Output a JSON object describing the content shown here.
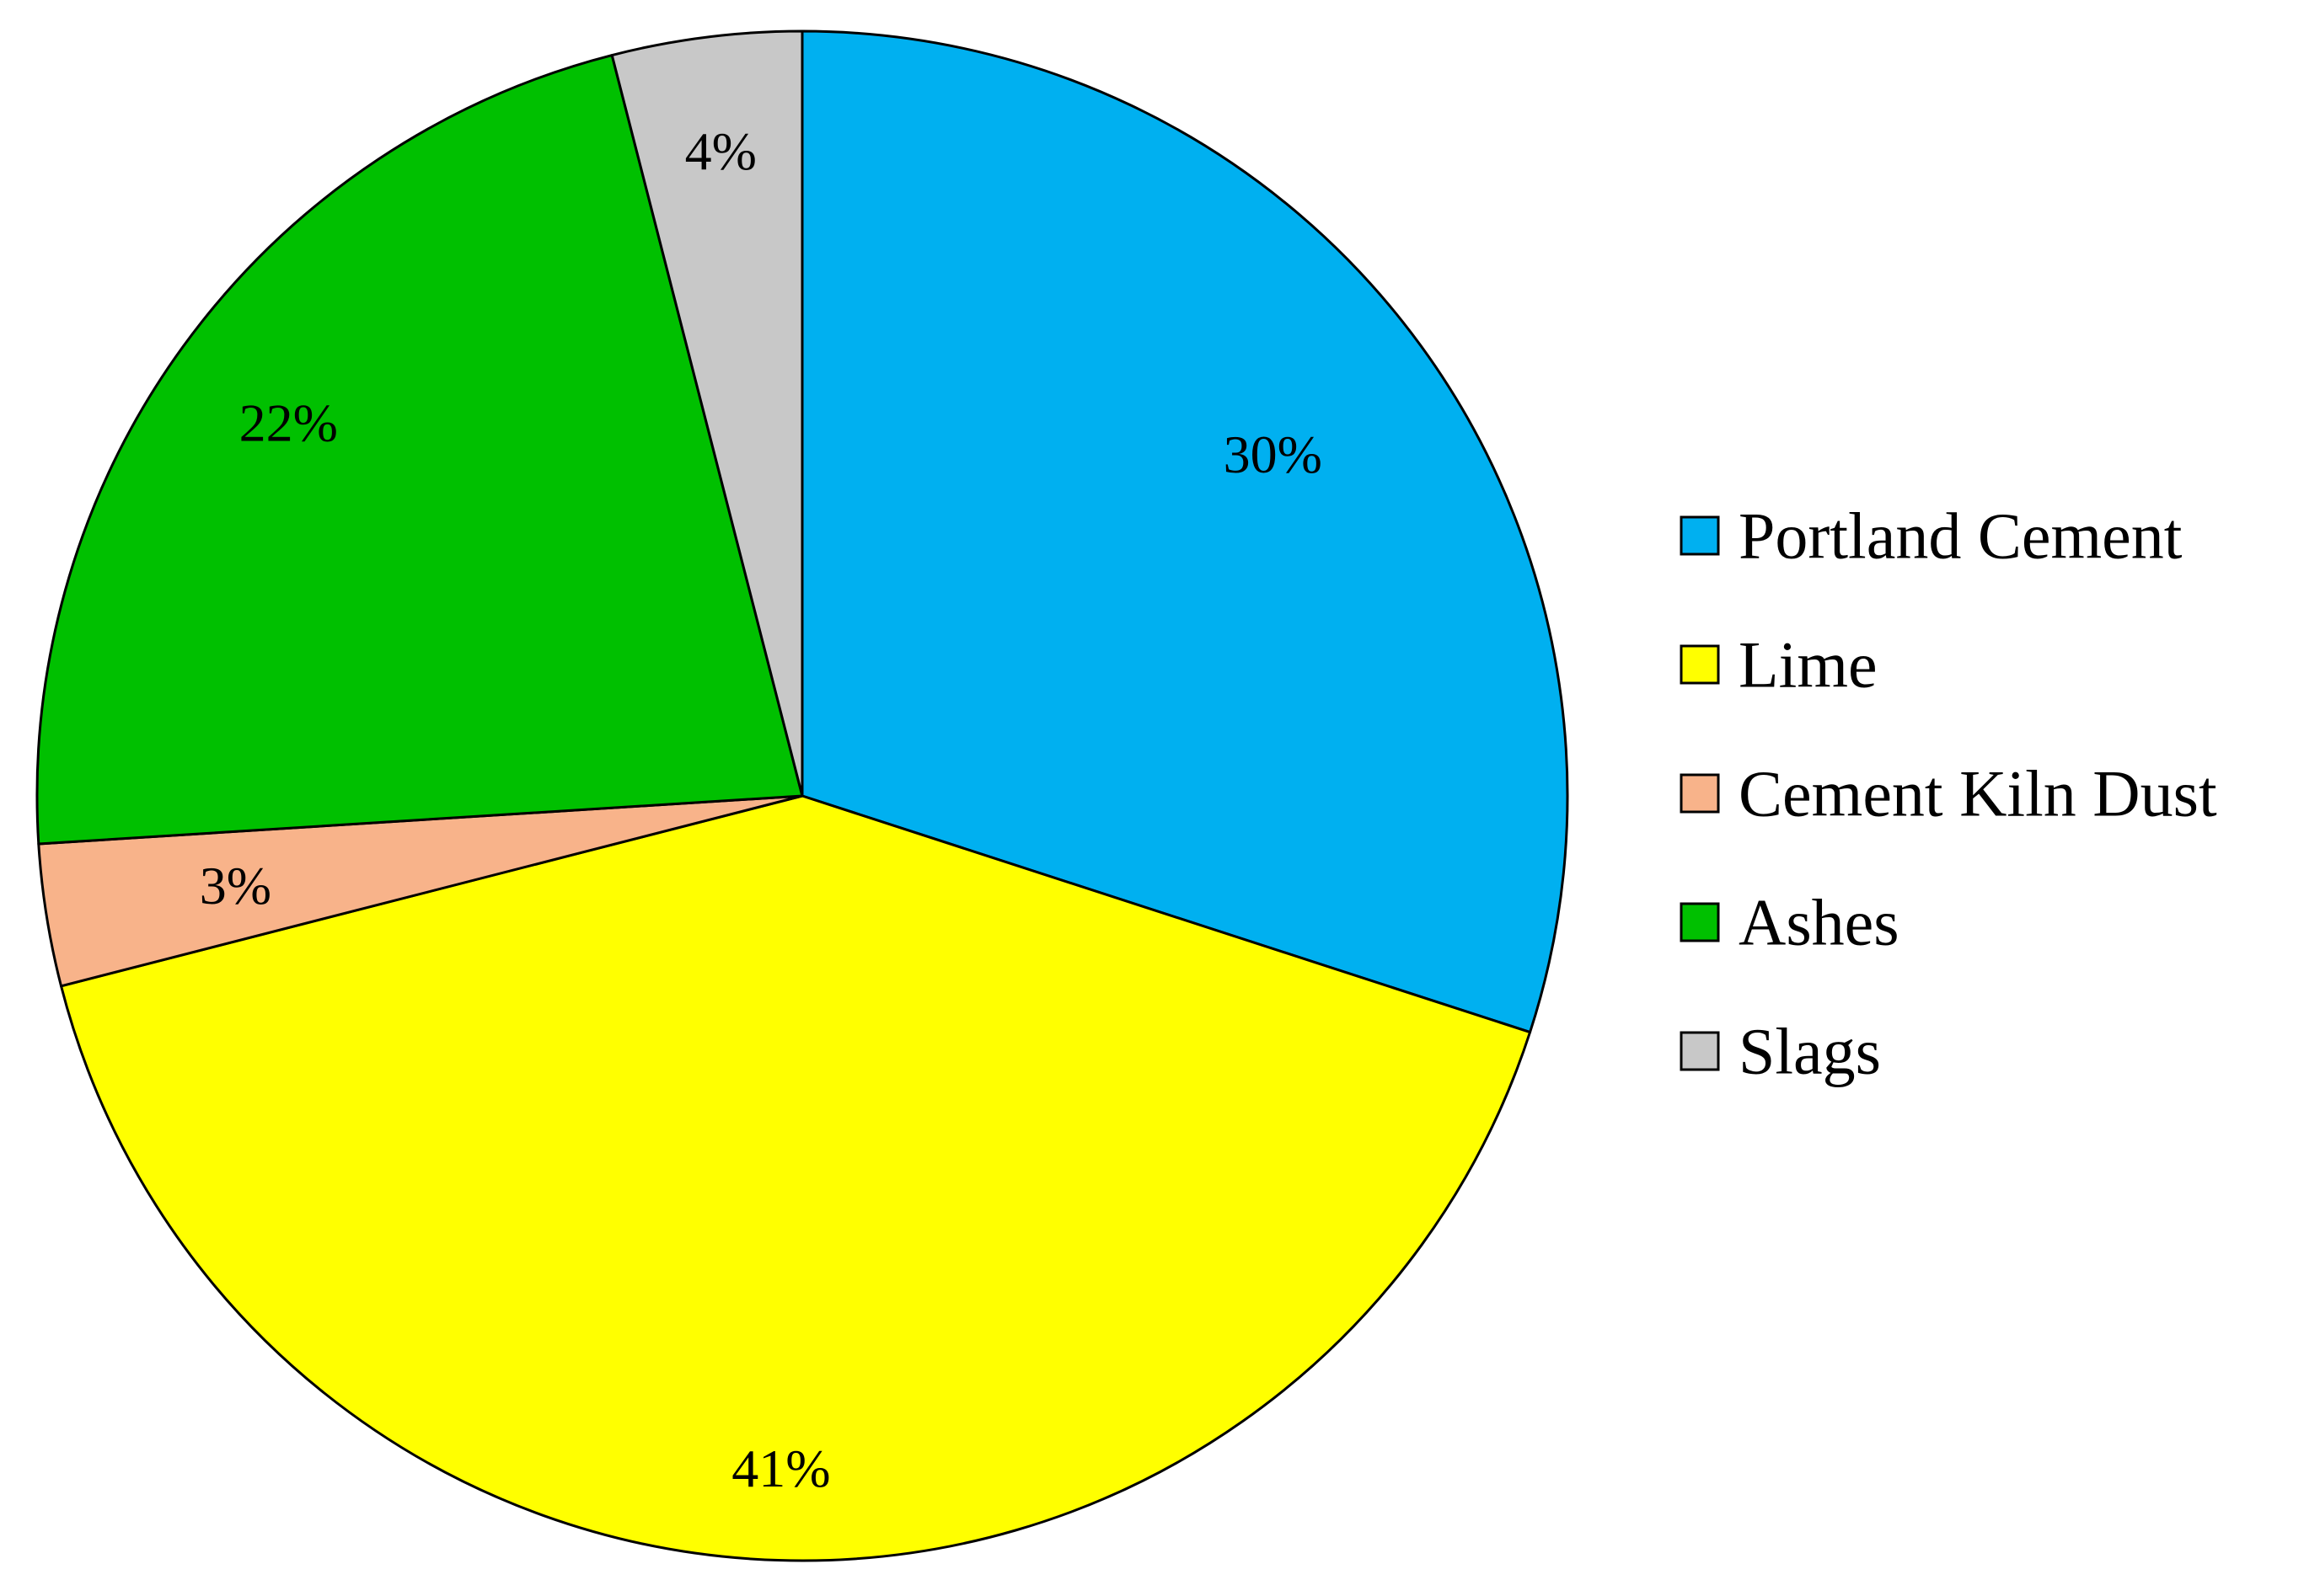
{
  "chart_data": {
    "type": "pie",
    "start_angle": "12 o'clock",
    "direction": "clockwise",
    "legend_position": "right",
    "slices": [
      {
        "name": "Portland Cement",
        "value": 30,
        "label": "30%",
        "color": "#00B0F0"
      },
      {
        "name": "Lime",
        "value": 41,
        "label": "41%",
        "color": "#FFFF00"
      },
      {
        "name": "Cement Kiln Dust",
        "value": 3,
        "label": "3%",
        "color": "#F8B38A"
      },
      {
        "name": "Ashes",
        "value": 22,
        "label": "22%",
        "color": "#00C000"
      },
      {
        "name": "Slags",
        "value": 4,
        "label": "4%",
        "color": "#C8C8C8"
      }
    ]
  }
}
